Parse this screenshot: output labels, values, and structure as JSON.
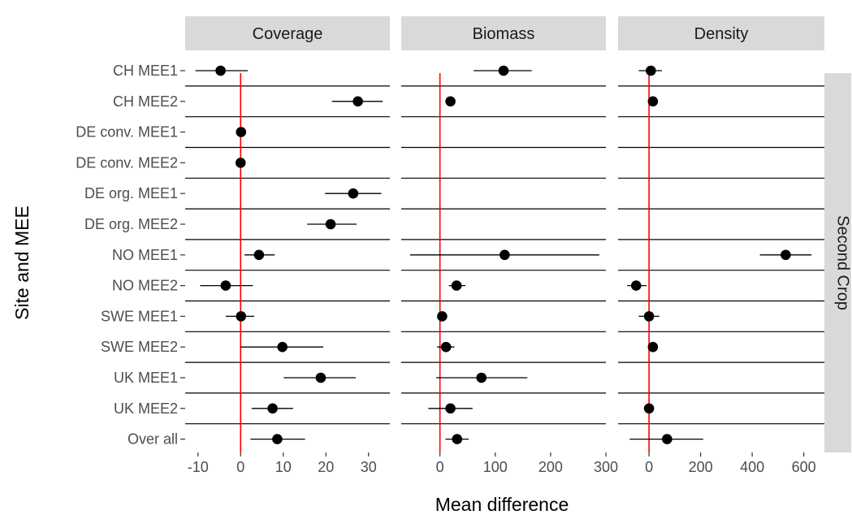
{
  "chart_data": {
    "type": "scatter",
    "subtype": "forest-plot-point-with-interval-facets",
    "xlabel": "Mean difference",
    "ylabel": "Site and MEE",
    "row_facet_label": "Second Crop",
    "reference_line_x": 0,
    "reference_line_color": "#ff0000",
    "strip_fill": "#d9d9d9",
    "point_color": "#000000",
    "grid": "horizontal lines at each category",
    "categories": [
      "CH MEE1",
      "CH MEE2",
      "DE conv. MEE1",
      "DE conv. MEE2",
      "DE org. MEE1",
      "DE org. MEE2",
      "NO MEE1",
      "NO MEE2",
      "SWE MEE1",
      "SWE MEE2",
      "UK MEE1",
      "UK MEE2",
      "Over all"
    ],
    "panels": [
      {
        "name": "Coverage",
        "xlim": [
          -13,
          35
        ],
        "xticks": [
          -10,
          0,
          10,
          20,
          30
        ],
        "xtick_labels": [
          "-10",
          "0",
          "10",
          "20",
          "30"
        ],
        "points": [
          {
            "category": "CH MEE1",
            "estimate": -4.7,
            "lower": -10.6,
            "upper": 1.7
          },
          {
            "category": "CH MEE2",
            "estimate": 27.5,
            "lower": 21.4,
            "upper": 33.3
          },
          {
            "category": "DE conv. MEE1",
            "estimate": 0.1,
            "lower": -0.4,
            "upper": 0.6
          },
          {
            "category": "DE conv. MEE2",
            "estimate": 0.0,
            "lower": -0.3,
            "upper": 0.3
          },
          {
            "category": "DE org. MEE1",
            "estimate": 26.4,
            "lower": 19.8,
            "upper": 33.0
          },
          {
            "category": "DE org. MEE2",
            "estimate": 21.1,
            "lower": 15.6,
            "upper": 27.2
          },
          {
            "category": "NO MEE1",
            "estimate": 4.3,
            "lower": 0.9,
            "upper": 8.0
          },
          {
            "category": "NO MEE2",
            "estimate": -3.5,
            "lower": -9.5,
            "upper": 2.9
          },
          {
            "category": "SWE MEE1",
            "estimate": 0.1,
            "lower": -3.5,
            "upper": 3.2
          },
          {
            "category": "SWE MEE2",
            "estimate": 9.8,
            "lower": 0.0,
            "upper": 19.4
          },
          {
            "category": "UK MEE1",
            "estimate": 18.8,
            "lower": 10.1,
            "upper": 27.0
          },
          {
            "category": "UK MEE2",
            "estimate": 7.5,
            "lower": 2.6,
            "upper": 12.3
          },
          {
            "category": "Over all",
            "estimate": 8.6,
            "lower": 2.3,
            "upper": 15.1
          }
        ]
      },
      {
        "name": "Biomass",
        "xlim": [
          -70,
          300
        ],
        "xticks": [
          0,
          100,
          200,
          300
        ],
        "xtick_labels": [
          "0",
          "100",
          "200",
          "300"
        ],
        "points": [
          {
            "category": "CH MEE1",
            "estimate": 115,
            "lower": 61,
            "upper": 166
          },
          {
            "category": "CH MEE2",
            "estimate": 19,
            "lower": 13,
            "upper": 24
          },
          {
            "category": "NO MEE1",
            "estimate": 117,
            "lower": -54,
            "upper": 288
          },
          {
            "category": "NO MEE2",
            "estimate": 30,
            "lower": 16,
            "upper": 46
          },
          {
            "category": "SWE MEE1",
            "estimate": 4,
            "lower": -4,
            "upper": 13
          },
          {
            "category": "SWE MEE2",
            "estimate": 11,
            "lower": -5,
            "upper": 26
          },
          {
            "category": "UK MEE1",
            "estimate": 75,
            "lower": -7,
            "upper": 158
          },
          {
            "category": "UK MEE2",
            "estimate": 19,
            "lower": -21,
            "upper": 59
          },
          {
            "category": "Over all",
            "estimate": 31,
            "lower": 10,
            "upper": 52
          }
        ]
      },
      {
        "name": "Density",
        "xlim": [
          -120,
          680
        ],
        "xticks": [
          0,
          200,
          400,
          600
        ],
        "xtick_labels": [
          "0",
          "200",
          "400",
          "600"
        ],
        "points": [
          {
            "category": "CH MEE1",
            "estimate": 7,
            "lower": -40,
            "upper": 50
          },
          {
            "category": "CH MEE2",
            "estimate": 15,
            "lower": 7,
            "upper": 23
          },
          {
            "category": "NO MEE1",
            "estimate": 530,
            "lower": 430,
            "upper": 630
          },
          {
            "category": "NO MEE2",
            "estimate": -50,
            "lower": -85,
            "upper": -10
          },
          {
            "category": "SWE MEE1",
            "estimate": 0,
            "lower": -40,
            "upper": 40
          },
          {
            "category": "SWE MEE2",
            "estimate": 15,
            "lower": 6,
            "upper": 24
          },
          {
            "category": "UK MEE2",
            "estimate": 0,
            "lower": -12,
            "upper": 12
          },
          {
            "category": "Over all",
            "estimate": 70,
            "lower": -75,
            "upper": 210
          }
        ]
      }
    ]
  }
}
